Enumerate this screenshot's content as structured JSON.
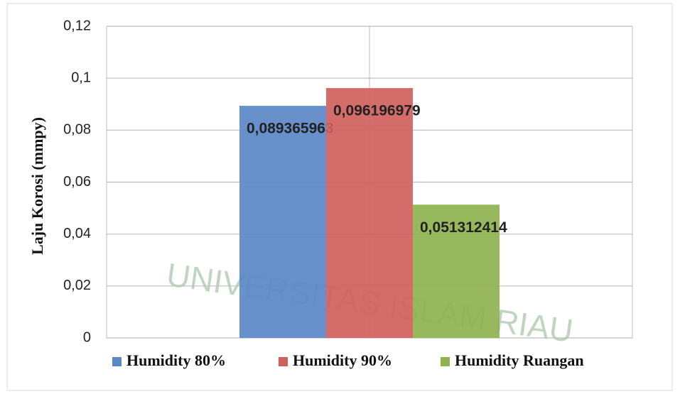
{
  "chart_data": {
    "type": "bar",
    "y_label": "Laju Korosi (mmpy)",
    "watermark": "UNIVERSITAS ISLAM RIAU",
    "categories": [
      null
    ],
    "series": [
      {
        "name": "Humidity 80%",
        "color": "#5b87c5",
        "values": [
          0.089365963
        ],
        "value_labels": [
          "0,089365963"
        ]
      },
      {
        "name": "Humidity 90%",
        "color": "#d0605c",
        "values": [
          0.096196979
        ],
        "value_labels": [
          "0,096196979"
        ]
      },
      {
        "name": "Humidity Ruangan",
        "color": "#8fb24f",
        "values": [
          0.051312414
        ],
        "value_labels": [
          "0,051312414"
        ]
      }
    ],
    "ylim": [
      0,
      0.12
    ],
    "yticks": [
      0,
      {
        "value": 0.02,
        "label": "0,02"
      },
      {
        "value": 0.04,
        "label": "0,04"
      },
      {
        "value": 0.06,
        "label": "0,06"
      },
      {
        "value": 0.08,
        "label": "0,08"
      },
      {
        "value": 0.1,
        "label": "0,1"
      },
      {
        "value": 0.12,
        "label": "0,12"
      }
    ],
    "grid": true,
    "legend": "bottom"
  }
}
